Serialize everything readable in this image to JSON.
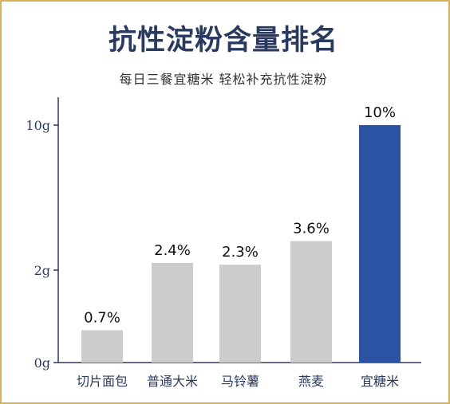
{
  "colors": {
    "frame": "#d8b25a",
    "title": "#2a3a5f",
    "bar": "#cccccc",
    "highlight": "#2a53a3",
    "axis": "#2a3a5f"
  },
  "chart_data": {
    "type": "bar",
    "title": "抗性淀粉含量排名",
    "subtitle": "每日三餐宜糖米 轻松补充抗性淀粉",
    "categories": [
      "切片面包",
      "普通大米",
      "马铃薯",
      "燕麦",
      "宜糖米"
    ],
    "values": [
      0.7,
      2.4,
      2.3,
      3.6,
      10
    ],
    "data_labels": [
      "0.7%",
      "2.4%",
      "2.3%",
      "3.6%",
      "10%"
    ],
    "highlight_index": 4,
    "y_ticks": [
      {
        "value": 0,
        "label": "0g"
      },
      {
        "value": 2,
        "label": "2g"
      },
      {
        "value": 10,
        "label": "10g"
      }
    ],
    "xlabel": "",
    "ylabel": "",
    "ylim": [
      0,
      10
    ],
    "grid": false,
    "legend": "none"
  }
}
